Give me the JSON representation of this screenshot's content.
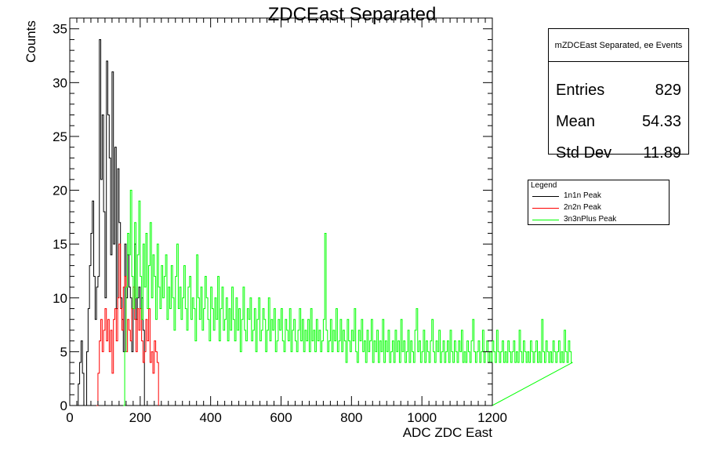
{
  "chart_data": {
    "type": "bar",
    "title": "ZDCEast Separated",
    "xlabel": "ADC ZDC East",
    "ylabel": "Counts",
    "xlim": [
      0,
      1200
    ],
    "ylim": [
      0,
      36
    ],
    "x_ticks": [
      "0",
      "200",
      "400",
      "600",
      "800",
      "1000",
      "1200"
    ],
    "y_ticks": [
      "0",
      "5",
      "10",
      "15",
      "20",
      "25",
      "30",
      "35"
    ],
    "grid": false,
    "legend_position": "right",
    "legend_title": "Legend",
    "bin_width": 4,
    "series": [
      {
        "name": "1n1n Peak",
        "color": "#000000",
        "x_start": 20,
        "values": [
          0,
          2,
          4,
          6,
          3,
          0,
          0,
          5,
          9,
          13,
          16,
          19,
          12,
          8,
          11,
          12,
          34,
          21,
          27,
          18,
          10,
          32,
          27,
          23,
          14,
          31,
          15,
          24,
          9,
          22,
          17,
          10,
          8,
          5,
          15,
          10,
          14,
          11,
          10,
          5,
          9,
          15,
          8,
          10,
          11,
          9,
          10,
          7
        ]
      },
      {
        "name": "2n2n Peak",
        "color": "#ff0000",
        "x_start": 76,
        "values": [
          0,
          3,
          6,
          8,
          5,
          7,
          9,
          6,
          8,
          5,
          7,
          3,
          8,
          9,
          6,
          10,
          15,
          9,
          7,
          11,
          12,
          5,
          8,
          7,
          6,
          9,
          11,
          8,
          5,
          9,
          7,
          9,
          6,
          4,
          5,
          8,
          6,
          9,
          4,
          5,
          3,
          6,
          5,
          4
        ]
      },
      {
        "name": "3n3nPlus Peak",
        "color": "#00ff00",
        "x_start": 152,
        "values": [
          0,
          5,
          11,
          16,
          14,
          20,
          12,
          9,
          17,
          10,
          14,
          19,
          12,
          8,
          15,
          11,
          16,
          9,
          13,
          17,
          10,
          14,
          12,
          8,
          15,
          11,
          9,
          13,
          10,
          12,
          14,
          8,
          11,
          9,
          13,
          10,
          7,
          12,
          15,
          9,
          11,
          8,
          10,
          13,
          9,
          7,
          11,
          12,
          8,
          10,
          9,
          6,
          14,
          10,
          8,
          11,
          7,
          9,
          12,
          10,
          8,
          6,
          11,
          9,
          7,
          10,
          8,
          12,
          6,
          9,
          11,
          7,
          8,
          10,
          6,
          9,
          7,
          11,
          8,
          6,
          10,
          7,
          9,
          5,
          8,
          11,
          7,
          6,
          9,
          8,
          10,
          6,
          7,
          9,
          5,
          8,
          10,
          6,
          7,
          9,
          8,
          5,
          7,
          10,
          6,
          8,
          7,
          9,
          5,
          6,
          8,
          7,
          9,
          6,
          5,
          8,
          7,
          6,
          9,
          5,
          7,
          8,
          6,
          5,
          7,
          9,
          6,
          8,
          5,
          7,
          6,
          8,
          5,
          9,
          6,
          7,
          5,
          8,
          6,
          7,
          5,
          6,
          8,
          16,
          7,
          5,
          6,
          8,
          5,
          7,
          6,
          9,
          5,
          6,
          8,
          5,
          7,
          6,
          4,
          8,
          6,
          5,
          7,
          6,
          9,
          5,
          4,
          7,
          6,
          8,
          5,
          6,
          4,
          7,
          5,
          6,
          8,
          4,
          6,
          5,
          7,
          4,
          6,
          5,
          8,
          4,
          6,
          5,
          7,
          4,
          5,
          6,
          4,
          7,
          5,
          6,
          4,
          8,
          5,
          6,
          4,
          5,
          7,
          4,
          6,
          5,
          4,
          7,
          9,
          5,
          6,
          4,
          5,
          7,
          4,
          6,
          5,
          4,
          6,
          8,
          5,
          4,
          6,
          5,
          7,
          4,
          5,
          6,
          4,
          5,
          6,
          4,
          7,
          5,
          4,
          6,
          5,
          4,
          6,
          5,
          7,
          4,
          5,
          4,
          6,
          5,
          4,
          6,
          8,
          5,
          4,
          5,
          6,
          4,
          5,
          7,
          4,
          5,
          6,
          4,
          5,
          4,
          6,
          5,
          4,
          7,
          5,
          4,
          5,
          6,
          4,
          5,
          4,
          6,
          5,
          4,
          5,
          6,
          4,
          5,
          4,
          7,
          5,
          4,
          6,
          5,
          4,
          5,
          4,
          6,
          5,
          4,
          5,
          6,
          4,
          5,
          4,
          8,
          5,
          4,
          6,
          5,
          4,
          5,
          4,
          6,
          5,
          4,
          5,
          6,
          4,
          5,
          4,
          7,
          5,
          4,
          6,
          5,
          4
        ]
      }
    ],
    "stats": {
      "title": "mZDCEast Separated, ee Events",
      "rows": [
        {
          "label": "Entries",
          "value": "829"
        },
        {
          "label": "Mean",
          "value": "54.33"
        },
        {
          "label": "Std Dev",
          "value": "11.89"
        }
      ]
    }
  }
}
